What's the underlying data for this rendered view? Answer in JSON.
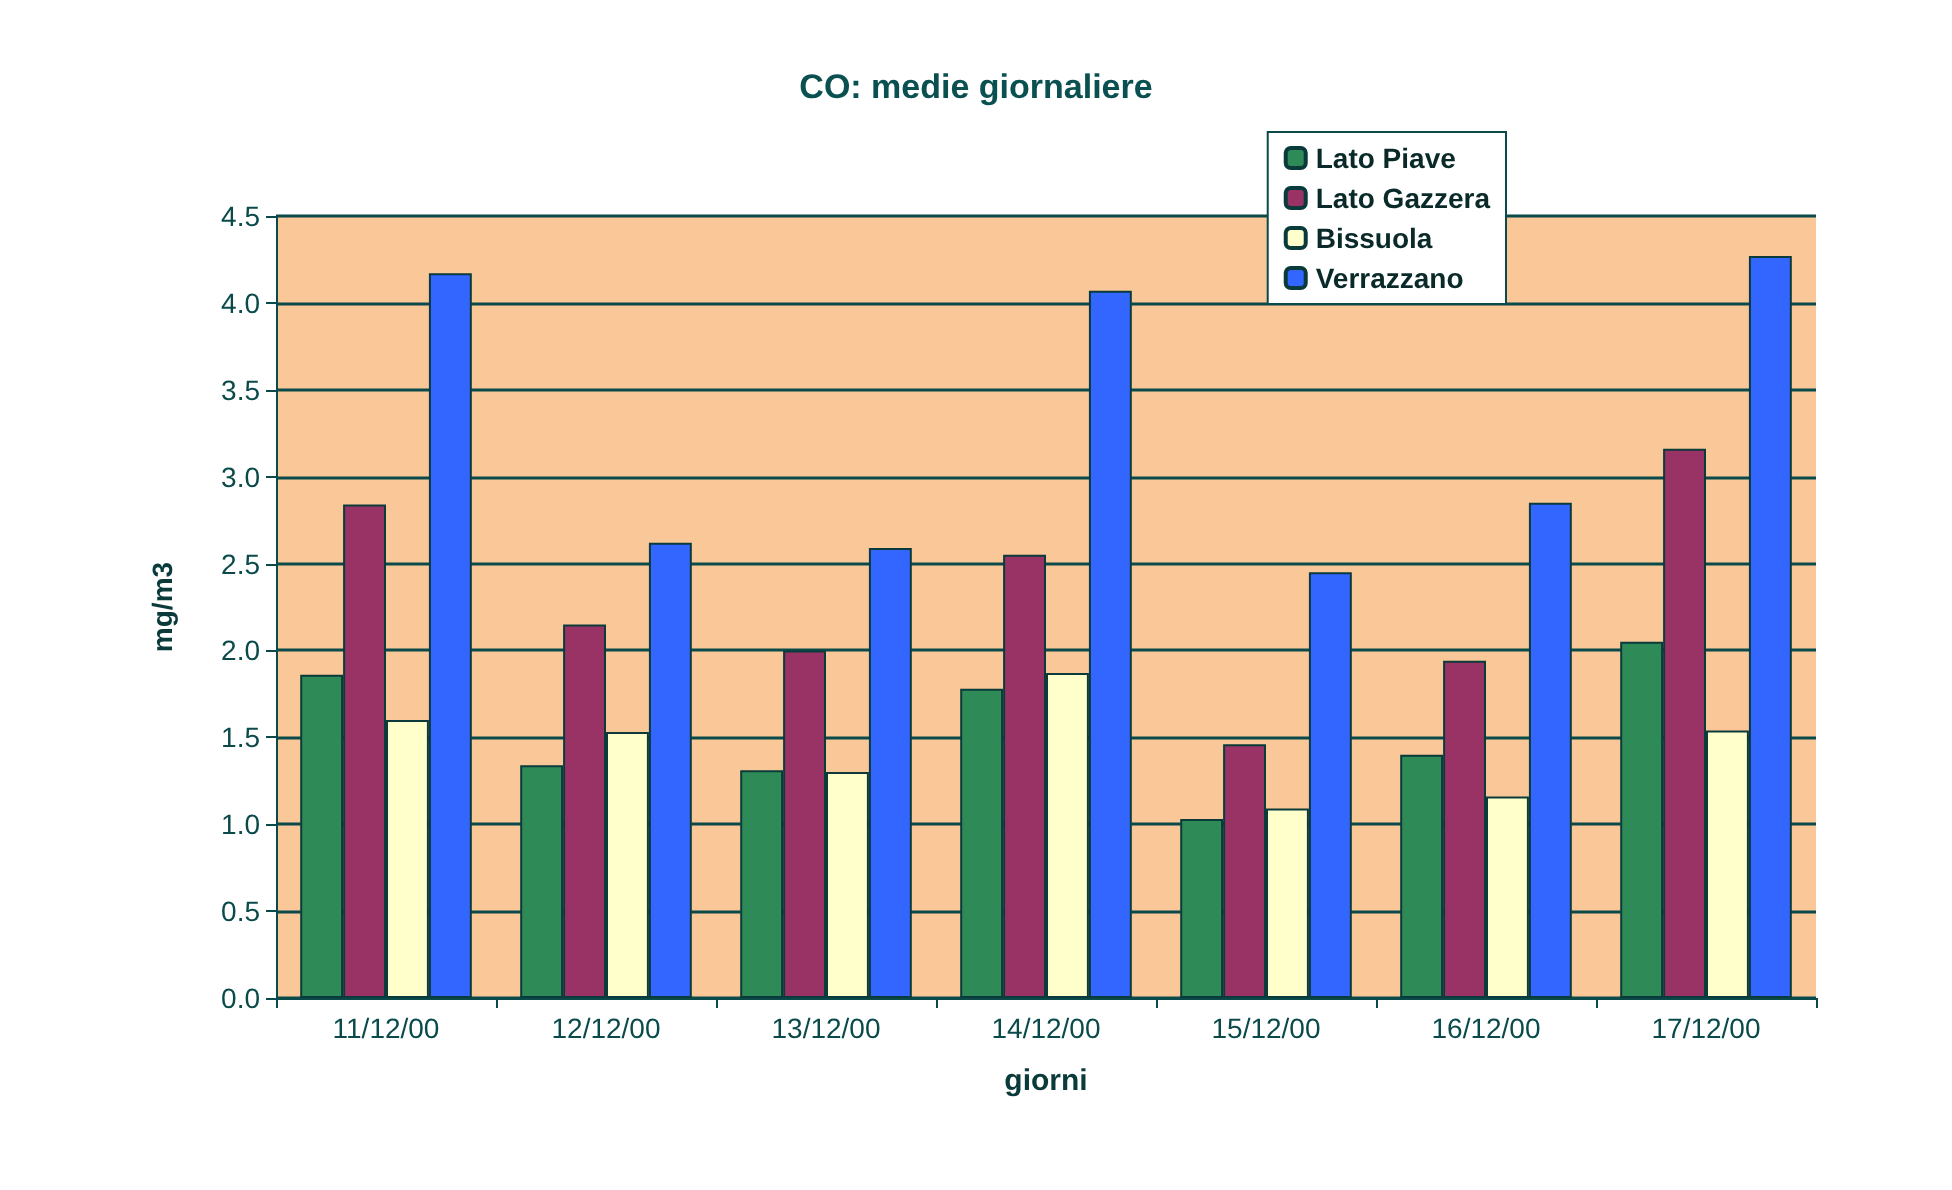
{
  "chart_data": {
    "type": "bar",
    "title": "CO: medie giornaliere",
    "xlabel": "giorni",
    "ylabel": "mg/m3",
    "categories": [
      "11/12/00",
      "12/12/00",
      "13/12/00",
      "14/12/00",
      "15/12/00",
      "16/12/00",
      "17/12/00"
    ],
    "series": [
      {
        "name": "Lato Piave",
        "color": "#2e8b57",
        "values": [
          1.86,
          1.34,
          1.31,
          1.78,
          1.03,
          1.4,
          2.05
        ]
      },
      {
        "name": "Lato Gazzera",
        "color": "#993366",
        "values": [
          2.84,
          2.15,
          2.0,
          2.55,
          1.46,
          1.94,
          3.16
        ]
      },
      {
        "name": "Bissuola",
        "color": "#ffffcc",
        "values": [
          1.6,
          1.53,
          1.3,
          1.87,
          1.09,
          1.16,
          1.54
        ]
      },
      {
        "name": "Verrazzano",
        "color": "#3366ff",
        "values": [
          4.17,
          2.62,
          2.59,
          4.07,
          2.45,
          2.85,
          4.27
        ]
      }
    ],
    "ylim": [
      0,
      4.5
    ],
    "yticks": [
      {
        "value": 0,
        "label": "0.0"
      },
      {
        "value": 0.5,
        "label": "0.5"
      },
      {
        "value": 1,
        "label": "1.0"
      },
      {
        "value": 1.5,
        "label": "1.5"
      },
      {
        "value": 2,
        "label": "2.0"
      },
      {
        "value": 2.5,
        "label": "2.5"
      },
      {
        "value": 3,
        "label": "3.0"
      },
      {
        "value": 3.5,
        "label": "3.5"
      },
      {
        "value": 4,
        "label": "4.0"
      },
      {
        "value": 4.5,
        "label": "4.5"
      }
    ],
    "grid": "y",
    "legend": "top right"
  }
}
